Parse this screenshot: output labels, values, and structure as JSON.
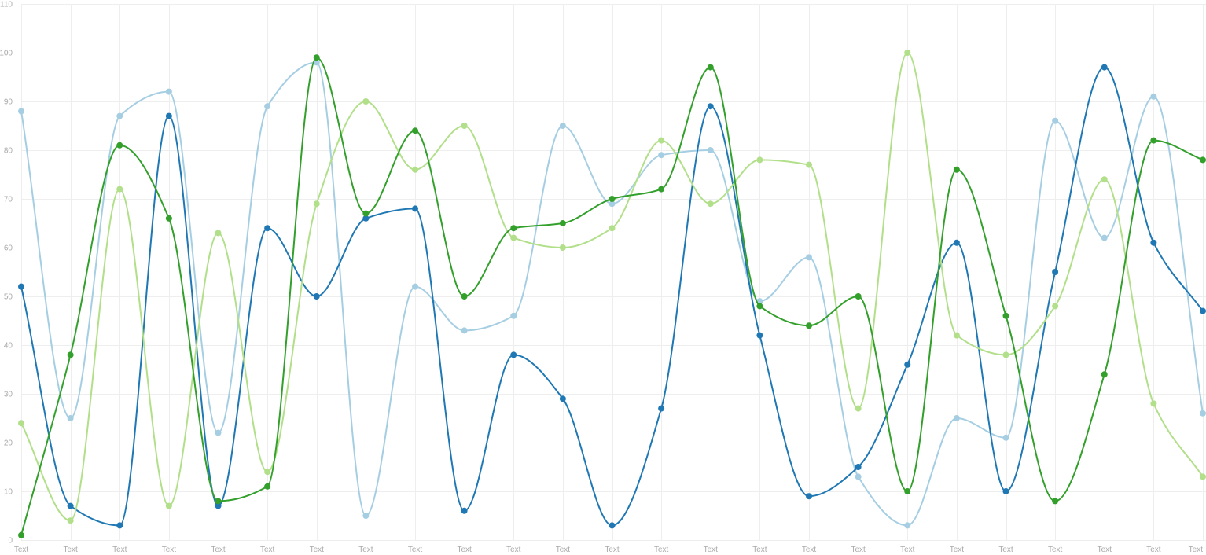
{
  "chart_data": {
    "type": "line",
    "title": "",
    "xlabel": "",
    "ylabel": "",
    "categories": [
      "Text",
      "Text",
      "Text",
      "Text",
      "Text",
      "Text",
      "Text",
      "Text",
      "Text",
      "Text",
      "Text",
      "Text",
      "Text",
      "Text",
      "Text",
      "Text",
      "Text",
      "Text",
      "Text",
      "Text",
      "Text",
      "Text",
      "Text",
      "Text",
      "Text"
    ],
    "ylim": [
      0,
      110
    ],
    "yticks": [
      0,
      10,
      20,
      30,
      40,
      50,
      60,
      70,
      80,
      90,
      100,
      110
    ],
    "grid": true,
    "smooth": true,
    "series": [
      {
        "color": "#a6cee3",
        "values": [
          88,
          25,
          87,
          92,
          22,
          89,
          98,
          5,
          52,
          43,
          46,
          85,
          69,
          79,
          80,
          49,
          58,
          13,
          3,
          25,
          21,
          86,
          62,
          91,
          26
        ]
      },
      {
        "color": "#1f78b4",
        "values": [
          52,
          7,
          3,
          87,
          7,
          64,
          50,
          66,
          68,
          6,
          38,
          29,
          3,
          27,
          89,
          42,
          9,
          15,
          36,
          61,
          10,
          55,
          97,
          61,
          47
        ]
      },
      {
        "color": "#b2df8a",
        "values": [
          24,
          4,
          72,
          7,
          63,
          14,
          69,
          90,
          76,
          85,
          62,
          60,
          64,
          82,
          69,
          78,
          77,
          27,
          100,
          42,
          38,
          48,
          74,
          28,
          13
        ]
      },
      {
        "color": "#33a02c",
        "values": [
          1,
          38,
          81,
          66,
          8,
          11,
          99,
          67,
          84,
          50,
          64,
          65,
          70,
          72,
          97,
          48,
          44,
          50,
          10,
          76,
          46,
          8,
          34,
          82,
          78
        ]
      }
    ]
  }
}
